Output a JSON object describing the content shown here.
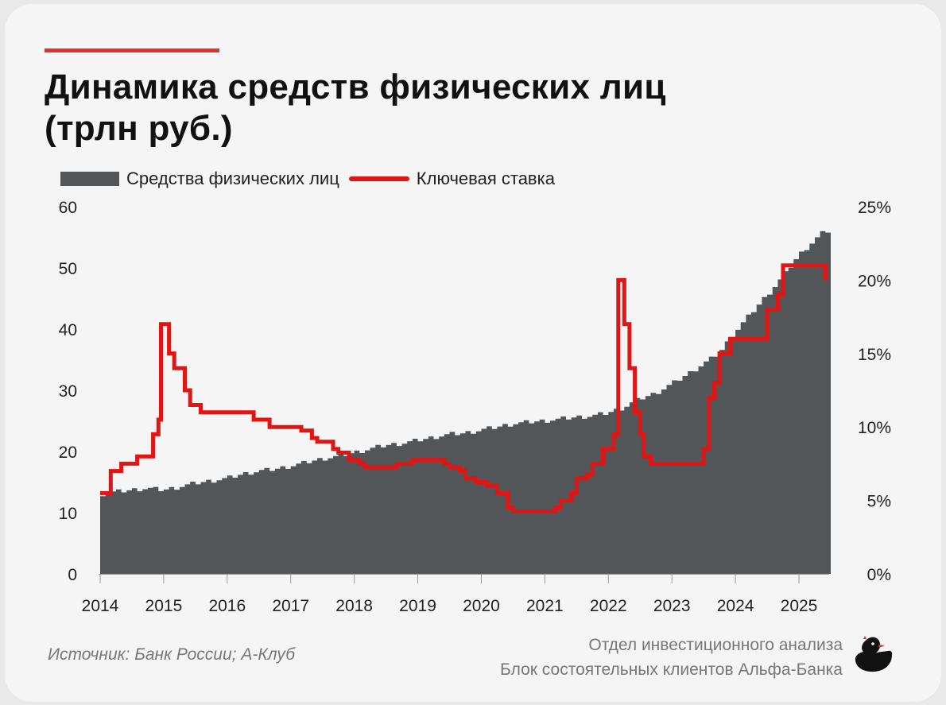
{
  "header": {
    "title_line1": "Динамика средств физических лиц",
    "title_line2": "(трлн руб.)"
  },
  "legend": {
    "area_label": "Средства физических лиц",
    "line_label": "Ключевая ставка"
  },
  "footer": {
    "source": "Источник: Банк России; А-Клуб",
    "org_line1": "Отдел инвестиционного анализа",
    "org_line2": "Блок состоятельных клиентов Альфа-Банка"
  },
  "colors": {
    "accent": "#e8302b",
    "area": "#525659",
    "line": "#e31414"
  },
  "chart_data": {
    "type": "area",
    "x_ticks": [
      "2014",
      "2015",
      "2016",
      "2017",
      "2018",
      "2019",
      "2020",
      "2021",
      "2022",
      "2023",
      "2024",
      "2025"
    ],
    "y_left_ticks": [
      "0",
      "10",
      "20",
      "30",
      "40",
      "50",
      "60"
    ],
    "y_left_range": [
      0,
      60
    ],
    "y_right_ticks": [
      "0%",
      "5%",
      "10%",
      "15%",
      "20%",
      "25%"
    ],
    "y_right_range": [
      0,
      25
    ],
    "grid": false,
    "series": [
      {
        "name": "Средства физических лиц",
        "axis": "left",
        "kind": "area",
        "points": [
          [
            "2014-01",
            13.0
          ],
          [
            "2014-04",
            13.4
          ],
          [
            "2014-07",
            13.7
          ],
          [
            "2014-10",
            14.0
          ],
          [
            "2015-01",
            13.7
          ],
          [
            "2015-04",
            14.2
          ],
          [
            "2015-07",
            14.8
          ],
          [
            "2015-10",
            15.2
          ],
          [
            "2016-01",
            15.6
          ],
          [
            "2016-04",
            16.3
          ],
          [
            "2016-07",
            16.8
          ],
          [
            "2016-10",
            17.1
          ],
          [
            "2017-01",
            17.6
          ],
          [
            "2017-04",
            18.2
          ],
          [
            "2017-07",
            18.8
          ],
          [
            "2017-10",
            19.2
          ],
          [
            "2018-01",
            19.8
          ],
          [
            "2018-04",
            20.4
          ],
          [
            "2018-07",
            21.0
          ],
          [
            "2018-10",
            21.3
          ],
          [
            "2019-01",
            21.8
          ],
          [
            "2019-04",
            22.3
          ],
          [
            "2019-07",
            22.8
          ],
          [
            "2019-10",
            23.0
          ],
          [
            "2020-01",
            23.5
          ],
          [
            "2020-04",
            24.0
          ],
          [
            "2020-07",
            24.5
          ],
          [
            "2020-10",
            24.8
          ],
          [
            "2021-01",
            25.0
          ],
          [
            "2021-04",
            25.3
          ],
          [
            "2021-07",
            25.6
          ],
          [
            "2021-10",
            25.8
          ],
          [
            "2022-01",
            26.3
          ],
          [
            "2022-04",
            27.2
          ],
          [
            "2022-07",
            28.6
          ],
          [
            "2022-10",
            29.5
          ],
          [
            "2023-01",
            31.0
          ],
          [
            "2023-04",
            32.6
          ],
          [
            "2023-07",
            34.3
          ],
          [
            "2023-10",
            36.0
          ],
          [
            "2024-01",
            39.5
          ],
          [
            "2024-04",
            42.5
          ],
          [
            "2024-07",
            45.5
          ],
          [
            "2024-10",
            48.5
          ],
          [
            "2025-01",
            52.0
          ],
          [
            "2025-04",
            54.5
          ],
          [
            "2025-06",
            56.0
          ]
        ]
      },
      {
        "name": "Ключевая ставка",
        "axis": "right",
        "kind": "step-line",
        "points": [
          [
            "2014-01",
            5.5
          ],
          [
            "2014-03",
            7.0
          ],
          [
            "2014-05",
            7.5
          ],
          [
            "2014-08",
            8.0
          ],
          [
            "2014-11",
            9.5
          ],
          [
            "2014-12",
            10.5
          ],
          [
            "2014-12-16",
            17.0
          ],
          [
            "2015-02",
            15.0
          ],
          [
            "2015-03",
            14.0
          ],
          [
            "2015-05",
            12.5
          ],
          [
            "2015-06",
            11.5
          ],
          [
            "2015-08",
            11.0
          ],
          [
            "2016-06",
            10.5
          ],
          [
            "2016-09",
            10.0
          ],
          [
            "2017-03",
            9.75
          ],
          [
            "2017-05",
            9.25
          ],
          [
            "2017-06",
            9.0
          ],
          [
            "2017-09",
            8.5
          ],
          [
            "2017-10",
            8.25
          ],
          [
            "2017-12",
            7.75
          ],
          [
            "2018-02",
            7.5
          ],
          [
            "2018-03",
            7.25
          ],
          [
            "2018-09",
            7.5
          ],
          [
            "2018-12",
            7.75
          ],
          [
            "2019-06",
            7.5
          ],
          [
            "2019-07",
            7.25
          ],
          [
            "2019-09",
            7.0
          ],
          [
            "2019-10",
            6.5
          ],
          [
            "2019-12",
            6.25
          ],
          [
            "2020-02",
            6.0
          ],
          [
            "2020-04",
            5.5
          ],
          [
            "2020-06",
            4.5
          ],
          [
            "2020-07",
            4.25
          ],
          [
            "2021-03",
            4.5
          ],
          [
            "2021-04",
            5.0
          ],
          [
            "2021-06",
            5.5
          ],
          [
            "2021-07",
            6.5
          ],
          [
            "2021-09",
            6.75
          ],
          [
            "2021-10",
            7.5
          ],
          [
            "2021-12",
            8.5
          ],
          [
            "2022-02",
            9.5
          ],
          [
            "2022-02-28",
            20.0
          ],
          [
            "2022-04",
            17.0
          ],
          [
            "2022-05",
            14.0
          ],
          [
            "2022-06",
            11.0
          ],
          [
            "2022-07",
            9.5
          ],
          [
            "2022-07-22",
            8.0
          ],
          [
            "2022-09",
            7.5
          ],
          [
            "2023-07",
            8.5
          ],
          [
            "2023-08",
            12.0
          ],
          [
            "2023-09",
            13.0
          ],
          [
            "2023-10",
            15.0
          ],
          [
            "2023-12",
            16.0
          ],
          [
            "2024-07",
            18.0
          ],
          [
            "2024-09",
            19.0
          ],
          [
            "2024-10",
            21.0
          ],
          [
            "2025-06",
            20.0
          ]
        ]
      }
    ]
  }
}
